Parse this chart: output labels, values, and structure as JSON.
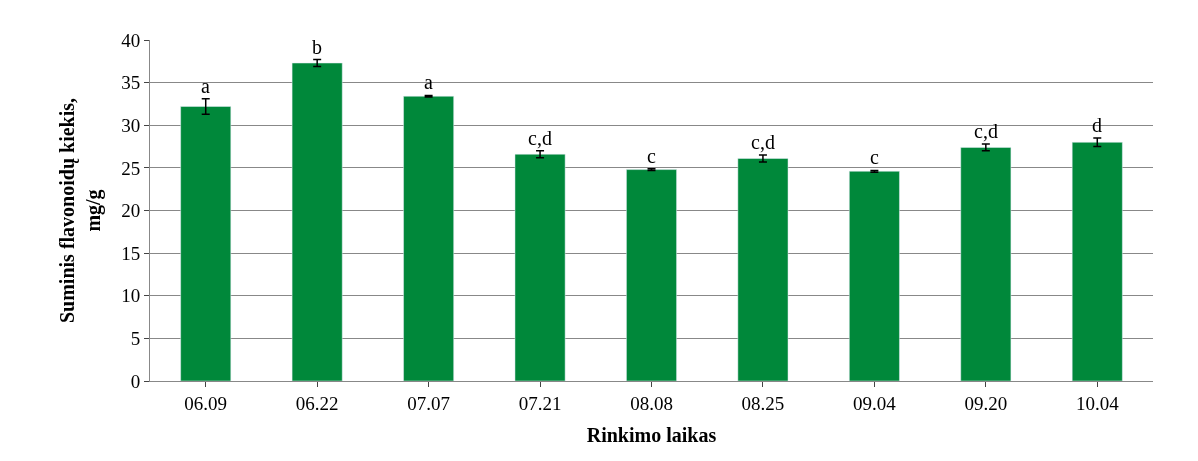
{
  "chart_data": {
    "type": "bar",
    "xlabel": "Rinkimo laikas",
    "ylabel": "Suminis flavonoidų kiekis,\nmg/g",
    "categories": [
      "06.09",
      "06.22",
      "07.07",
      "07.21",
      "08.08",
      "08.25",
      "09.04",
      "09.20",
      "10.04"
    ],
    "values": [
      32.2,
      37.3,
      33.4,
      26.6,
      24.8,
      26.1,
      24.6,
      27.4,
      28.0
    ],
    "errors": [
      0.9,
      0.4,
      0.1,
      0.4,
      0.1,
      0.4,
      0.1,
      0.4,
      0.5
    ],
    "color": "#00883a",
    "ylim": [
      0,
      40
    ],
    "yticks": [
      0,
      5,
      10,
      15,
      20,
      25,
      30,
      35,
      40
    ],
    "grid": "y",
    "annotations": [
      {
        "text": "a",
        "x": "06.09",
        "y": 33.1
      },
      {
        "text": "b",
        "x": "06.22",
        "y": 37.7
      },
      {
        "text": "a",
        "x": "07.07",
        "y": 33.5
      },
      {
        "text": "c,d",
        "x": "07.21",
        "y": 27.0
      },
      {
        "text": "c",
        "x": "08.08",
        "y": 24.9
      },
      {
        "text": "c,d",
        "x": "08.25",
        "y": 26.5
      },
      {
        "text": "c",
        "x": "09.04",
        "y": 24.7
      },
      {
        "text": "c,d",
        "x": "09.20",
        "y": 27.8
      },
      {
        "text": "d",
        "x": "10.04",
        "y": 28.5
      }
    ]
  }
}
